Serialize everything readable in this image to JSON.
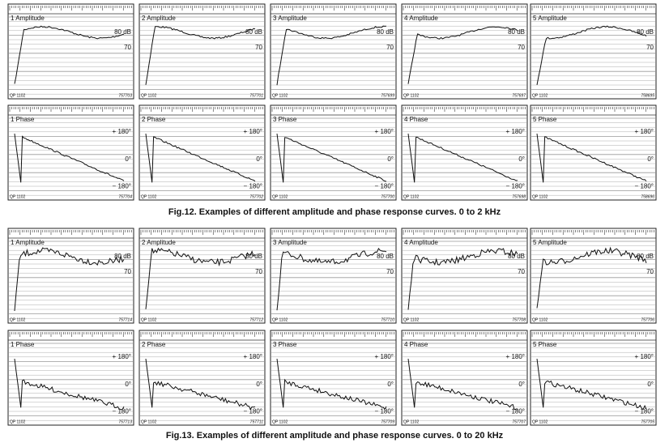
{
  "figures": [
    {
      "caption": "Fig.12.  Examples of different amplitude and phase response curves. 0 to 2 kHz",
      "rows": [
        {
          "kind": "amplitude",
          "panels": [
            {
              "label": "1 Amplitude",
              "marks": [
                "80 dB",
                "70"
              ],
              "code": "QP 1102",
              "serial": "757703"
            },
            {
              "label": "2 Amplitude",
              "marks": [
                "80 dB",
                "70"
              ],
              "code": "QP 1102",
              "serial": "757701"
            },
            {
              "label": "3 Amplitude",
              "marks": [
                "80 dB",
                "70"
              ],
              "code": "QP 1102",
              "serial": "757699"
            },
            {
              "label": "4 Amplitude",
              "marks": [
                "80 dB",
                "70"
              ],
              "code": "QP 1102",
              "serial": "757697"
            },
            {
              "label": "5 Amplitude",
              "marks": [
                "80 dB",
                "70"
              ],
              "code": "QP 1102",
              "serial": "758695"
            }
          ]
        },
        {
          "kind": "phase",
          "panels": [
            {
              "label": "1 Phase",
              "marks": [
                "+ 180°",
                "0°",
                "− 180°"
              ],
              "code": "QP 1102",
              "serial": "757704"
            },
            {
              "label": "2 Phase",
              "marks": [
                "+ 180°",
                "0°",
                "− 180°"
              ],
              "code": "QP 1102",
              "serial": "757702"
            },
            {
              "label": "3 Phase",
              "marks": [
                "+ 180°",
                "0°",
                "− 180°"
              ],
              "code": "QP 1102",
              "serial": "757700"
            },
            {
              "label": "4 Phase",
              "marks": [
                "+ 180°",
                "0°",
                "− 180°"
              ],
              "code": "QP 1102",
              "serial": "757698"
            },
            {
              "label": "5 Phase",
              "marks": [
                "+ 180°",
                "0°",
                "− 180°"
              ],
              "code": "QP 1102",
              "serial": "758696"
            }
          ]
        }
      ]
    },
    {
      "caption": "Fig.13.  Examples of different amplitude and phase response curves. 0 to 20 kHz",
      "rows": [
        {
          "kind": "amplitude",
          "panels": [
            {
              "label": "1 Amplitude",
              "marks": [
                "80 dB",
                "70"
              ],
              "code": "QP 1102",
              "serial": "757714"
            },
            {
              "label": "2 Amplitude",
              "marks": [
                "80 dB",
                "70"
              ],
              "code": "QP 1102",
              "serial": "757712"
            },
            {
              "label": "3 Amplitude",
              "marks": [
                "80 dB",
                "70"
              ],
              "code": "QP 1102",
              "serial": "757710"
            },
            {
              "label": "4 Amplitude",
              "marks": [
                "80 dB",
                "70"
              ],
              "code": "QP 1102",
              "serial": "757708"
            },
            {
              "label": "5 Amplitude",
              "marks": [
                "80 dB",
                "70"
              ],
              "code": "QP 1102",
              "serial": "757706"
            }
          ]
        },
        {
          "kind": "phase",
          "panels": [
            {
              "label": "1 Phase",
              "marks": [
                "+ 180°",
                "0°",
                "− 180°"
              ],
              "code": "QP 1102",
              "serial": "757713"
            },
            {
              "label": "2 Phase",
              "marks": [
                "+ 180°",
                "0°",
                "− 180°"
              ],
              "code": "QP 1102",
              "serial": "757711"
            },
            {
              "label": "3 Phase",
              "marks": [
                "+ 180°",
                "0°",
                "− 180°"
              ],
              "code": "QP 1102",
              "serial": "757709"
            },
            {
              "label": "4 Phase",
              "marks": [
                "+ 180°",
                "0°",
                "− 180°"
              ],
              "code": "QP 1102",
              "serial": "757707"
            },
            {
              "label": "5 Phase",
              "marks": [
                "+ 180°",
                "0°",
                "− 180°"
              ],
              "code": "QP 1102",
              "serial": "757705"
            }
          ]
        }
      ]
    }
  ]
}
